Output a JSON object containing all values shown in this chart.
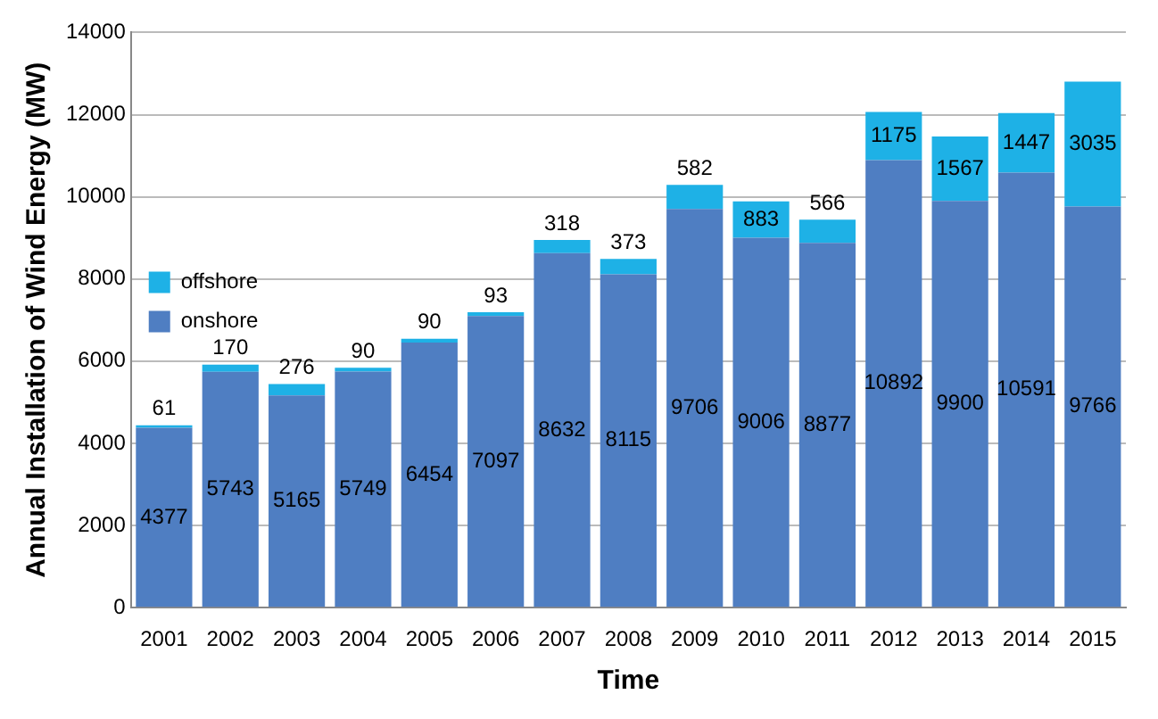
{
  "chart_data": {
    "type": "bar",
    "stacked": true,
    "xlabel": "Time",
    "ylabel": "Annual Installation of Wind Energy (MW)",
    "categories": [
      "2001",
      "2002",
      "2003",
      "2004",
      "2005",
      "2006",
      "2007",
      "2008",
      "2009",
      "2010",
      "2011",
      "2012",
      "2013",
      "2014",
      "2015"
    ],
    "series": [
      {
        "name": "onshore",
        "color": "#4f7ec2",
        "values": [
          4377,
          5743,
          5165,
          5749,
          6454,
          7097,
          8632,
          8115,
          9706,
          9006,
          8877,
          10892,
          9900,
          10591,
          9766
        ]
      },
      {
        "name": "offshore",
        "color": "#1eb1e6",
        "values": [
          61,
          170,
          276,
          90,
          90,
          93,
          318,
          373,
          582,
          883,
          566,
          1175,
          1567,
          1447,
          3035
        ]
      }
    ],
    "ylim": [
      0,
      14000
    ],
    "yticks": [
      0,
      2000,
      4000,
      6000,
      8000,
      10000,
      12000,
      14000
    ],
    "grid": "y",
    "legend": "top",
    "data_labels": true
  }
}
